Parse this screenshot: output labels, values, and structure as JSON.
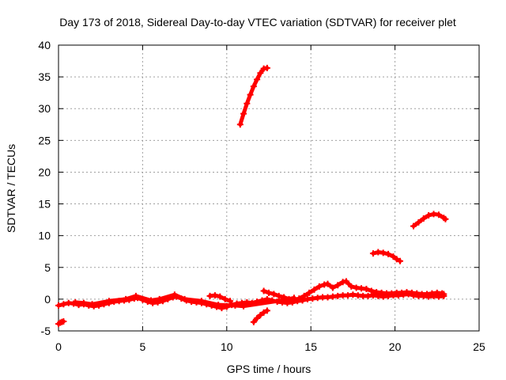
{
  "chart_data": {
    "type": "scatter",
    "title": "Day 173 of 2018, Sidereal Day-to-day VTEC variation (SDTVAR) for receiver plet",
    "xlabel": "GPS time / hours",
    "ylabel": "SDTVAR / TECUs",
    "xlim": [
      0,
      25
    ],
    "ylim": [
      -5,
      40
    ],
    "xticks": [
      0,
      5,
      10,
      15,
      20,
      25
    ],
    "yticks": [
      -5,
      0,
      5,
      10,
      15,
      20,
      25,
      30,
      35,
      40
    ],
    "grid": true,
    "legend": "none",
    "marker_color": "#ff0000",
    "series": [
      {
        "values": [
          [
            0.0,
            -1.0
          ],
          [
            0.3,
            -0.8
          ],
          [
            0.6,
            -0.6
          ],
          [
            0.9,
            -0.7
          ],
          [
            1.2,
            -0.9
          ],
          [
            1.5,
            -0.8
          ],
          [
            1.8,
            -1.0
          ],
          [
            2.1,
            -1.1
          ],
          [
            2.4,
            -1.0
          ],
          [
            2.7,
            -0.8
          ],
          [
            3.0,
            -0.6
          ],
          [
            3.3,
            -0.4
          ],
          [
            3.6,
            -0.3
          ],
          [
            3.9,
            -0.2
          ],
          [
            4.2,
            -0.1
          ],
          [
            4.5,
            0.1
          ],
          [
            4.7,
            0.2
          ],
          [
            5.0,
            -0.1
          ],
          [
            5.3,
            -0.4
          ],
          [
            5.6,
            -0.6
          ],
          [
            5.9,
            -0.5
          ],
          [
            6.2,
            -0.3
          ],
          [
            6.5,
            0.0
          ],
          [
            6.8,
            0.3
          ],
          [
            7.0,
            0.4
          ],
          [
            7.3,
            0.1
          ],
          [
            7.6,
            -0.2
          ],
          [
            7.9,
            -0.4
          ],
          [
            8.2,
            -0.5
          ],
          [
            8.5,
            -0.6
          ],
          [
            8.8,
            -0.8
          ],
          [
            9.1,
            -1.0
          ],
          [
            9.4,
            -1.2
          ],
          [
            9.7,
            -1.4
          ],
          [
            10.0,
            -1.2
          ],
          [
            10.3,
            -0.9
          ],
          [
            10.6,
            -0.7
          ],
          [
            10.9,
            -0.6
          ],
          [
            11.2,
            -0.5
          ],
          [
            11.5,
            -0.6
          ],
          [
            11.8,
            -0.4
          ],
          [
            12.1,
            -0.2
          ],
          [
            12.4,
            0.0
          ],
          [
            12.7,
            -0.2
          ],
          [
            13.0,
            -0.4
          ],
          [
            13.3,
            -0.5
          ],
          [
            13.6,
            -0.6
          ],
          [
            13.9,
            -0.5
          ],
          [
            14.2,
            -0.3
          ],
          [
            14.5,
            -0.2
          ],
          [
            14.8,
            0.0
          ],
          [
            15.1,
            0.1
          ],
          [
            15.4,
            0.2
          ],
          [
            15.7,
            0.3
          ],
          [
            16.0,
            0.3
          ],
          [
            16.3,
            0.4
          ],
          [
            16.6,
            0.5
          ],
          [
            16.9,
            0.6
          ],
          [
            17.2,
            0.6
          ],
          [
            17.5,
            0.7
          ],
          [
            17.8,
            0.6
          ],
          [
            18.1,
            0.5
          ],
          [
            18.4,
            0.5
          ],
          [
            18.7,
            0.6
          ],
          [
            19.0,
            0.5
          ],
          [
            19.3,
            0.4
          ],
          [
            19.6,
            0.5
          ],
          [
            19.9,
            0.6
          ],
          [
            20.2,
            0.6
          ],
          [
            20.5,
            0.7
          ],
          [
            20.8,
            0.8
          ],
          [
            21.1,
            0.6
          ],
          [
            21.4,
            0.5
          ],
          [
            21.7,
            0.5
          ],
          [
            22.0,
            0.4
          ],
          [
            22.3,
            0.5
          ],
          [
            22.6,
            0.4
          ],
          [
            22.9,
            0.5
          ]
        ]
      },
      {
        "values": [
          [
            10.8,
            27.5
          ],
          [
            11.0,
            29.2
          ],
          [
            11.2,
            30.8
          ],
          [
            11.4,
            32.2
          ],
          [
            11.6,
            33.5
          ],
          [
            11.8,
            34.6
          ],
          [
            12.0,
            35.6
          ],
          [
            12.2,
            36.3
          ],
          [
            12.4,
            36.4
          ]
        ]
      },
      {
        "values": [
          [
            18.7,
            7.2
          ],
          [
            19.0,
            7.4
          ],
          [
            19.3,
            7.3
          ],
          [
            19.6,
            7.1
          ],
          [
            19.9,
            6.7
          ],
          [
            20.1,
            6.3
          ],
          [
            20.3,
            6.0
          ]
        ]
      },
      {
        "values": [
          [
            21.1,
            11.5
          ],
          [
            21.4,
            12.1
          ],
          [
            21.7,
            12.7
          ],
          [
            22.0,
            13.2
          ],
          [
            22.3,
            13.4
          ],
          [
            22.6,
            13.3
          ],
          [
            22.9,
            12.8
          ],
          [
            23.0,
            12.6
          ]
        ]
      },
      {
        "values": [
          [
            0.0,
            -3.9
          ],
          [
            0.1,
            -3.7
          ],
          [
            0.2,
            -3.6
          ],
          [
            0.3,
            -3.5
          ]
        ]
      },
      {
        "values": [
          [
            11.6,
            -3.6
          ],
          [
            11.8,
            -3.0
          ],
          [
            12.0,
            -2.5
          ],
          [
            12.2,
            -2.1
          ],
          [
            12.4,
            -1.8
          ]
        ]
      },
      {
        "values": [
          [
            9.0,
            0.5
          ],
          [
            9.3,
            0.6
          ],
          [
            9.6,
            0.4
          ],
          [
            9.9,
            0.0
          ],
          [
            10.2,
            -0.3
          ]
        ]
      },
      {
        "values": [
          [
            12.2,
            1.3
          ],
          [
            12.5,
            1.0
          ],
          [
            12.8,
            0.8
          ],
          [
            13.1,
            0.5
          ],
          [
            13.4,
            0.3
          ],
          [
            13.7,
            0.0
          ],
          [
            14.0,
            -0.2
          ],
          [
            14.3,
            0.1
          ],
          [
            14.6,
            0.5
          ],
          [
            14.9,
            1.0
          ],
          [
            15.2,
            1.5
          ],
          [
            15.5,
            2.0
          ],
          [
            15.8,
            2.3
          ],
          [
            16.0,
            2.4
          ],
          [
            16.3,
            1.8
          ],
          [
            16.6,
            2.2
          ],
          [
            16.9,
            2.7
          ],
          [
            17.1,
            2.8
          ],
          [
            17.4,
            2.0
          ],
          [
            17.7,
            1.8
          ],
          [
            18.0,
            1.7
          ],
          [
            18.3,
            1.6
          ],
          [
            18.6,
            1.3
          ],
          [
            18.9,
            1.1
          ],
          [
            19.2,
            1.0
          ],
          [
            19.5,
            0.9
          ],
          [
            19.8,
            0.9
          ],
          [
            20.1,
            1.0
          ],
          [
            20.4,
            1.0
          ],
          [
            20.7,
            1.1
          ],
          [
            21.0,
            1.0
          ],
          [
            21.3,
            0.9
          ],
          [
            21.6,
            0.8
          ],
          [
            21.9,
            0.8
          ],
          [
            22.2,
            0.9
          ],
          [
            22.5,
            1.0
          ],
          [
            22.8,
            0.9
          ],
          [
            22.9,
            0.8
          ]
        ]
      },
      {
        "values": [
          [
            1.0,
            -0.5
          ],
          [
            1.5,
            -0.6
          ],
          [
            2.0,
            -0.8
          ],
          [
            3.0,
            -0.3
          ],
          [
            4.0,
            0.0
          ],
          [
            4.6,
            0.5
          ],
          [
            5.5,
            -0.2
          ],
          [
            6.0,
            0.0
          ],
          [
            6.9,
            0.7
          ],
          [
            7.5,
            0.0
          ],
          [
            8.5,
            -0.3
          ],
          [
            9.5,
            -0.9
          ],
          [
            10.5,
            -1.0
          ],
          [
            11.0,
            -1.1
          ],
          [
            13.5,
            -0.1
          ],
          [
            14.0,
            0.2
          ]
        ]
      }
    ]
  }
}
